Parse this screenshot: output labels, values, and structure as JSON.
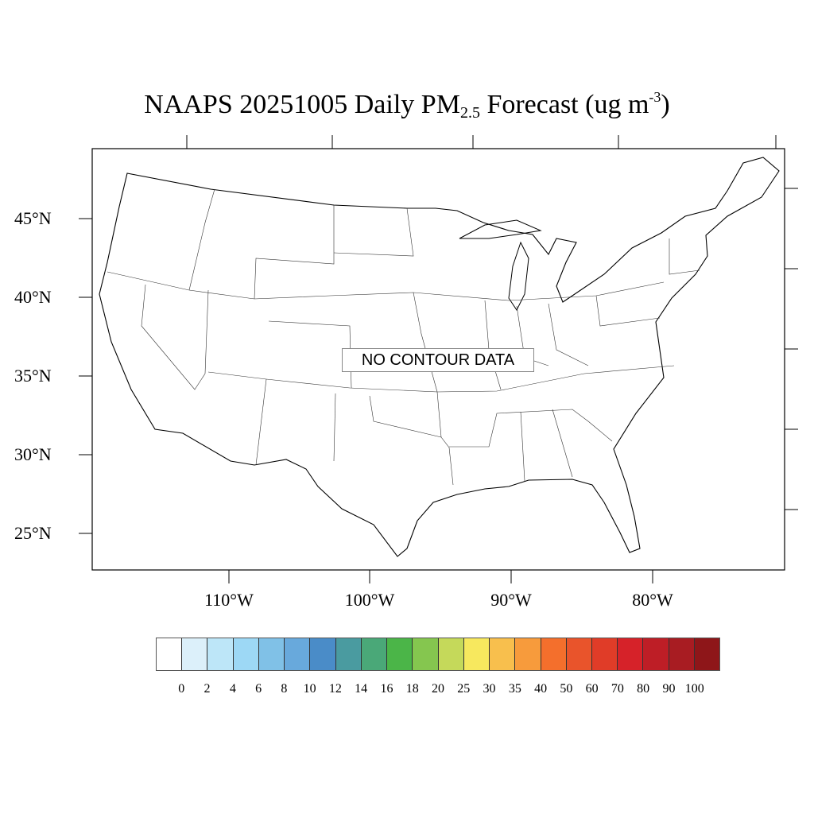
{
  "title": {
    "prefix": "NAAPS 20251005 Daily PM",
    "subscript": "2.5",
    "middle": " Forecast (ug m",
    "superscript": "-3",
    "suffix": ")"
  },
  "map": {
    "region": "Contiguous United States",
    "lat_labels": [
      "45°N",
      "40°N",
      "35°N",
      "30°N",
      "25°N"
    ],
    "lon_labels": [
      "110°W",
      "100°W",
      "90°W",
      "80°W"
    ],
    "message": "NO CONTOUR DATA"
  },
  "colorbar": {
    "labels": [
      "0",
      "2",
      "4",
      "6",
      "8",
      "10",
      "12",
      "14",
      "16",
      "18",
      "20",
      "25",
      "30",
      "35",
      "40",
      "50",
      "60",
      "70",
      "80",
      "90",
      "100"
    ],
    "colors": [
      "#ffffff",
      "#dcf0fa",
      "#bde6f8",
      "#9dd8f5",
      "#80c1e7",
      "#68a9dc",
      "#4a8cc8",
      "#4a9ba0",
      "#4aa878",
      "#4bb548",
      "#85c64f",
      "#c5d95a",
      "#f7e85e",
      "#f8bf4d",
      "#f79b3c",
      "#f46f2c",
      "#e9542b",
      "#e03c28",
      "#d62229",
      "#be1e26",
      "#a81c22",
      "#8e1619"
    ]
  }
}
